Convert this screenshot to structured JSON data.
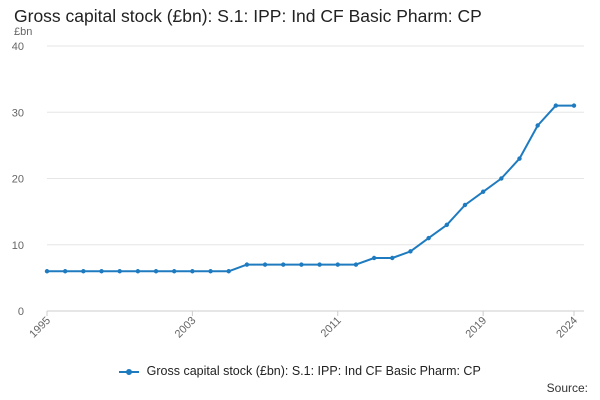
{
  "title": "Gross capital stock (£bn): S.1: IPP: Ind CF Basic Pharm: CP",
  "source_label": "Source:",
  "colors": {
    "series": "#1f7bbf",
    "grid": "#e6e6e6",
    "axis_text": "#666666"
  },
  "chart_data": {
    "type": "line",
    "title": "Gross capital stock (£bn): S.1: IPP: Ind CF Basic Pharm: CP",
    "ylabel": "£bn",
    "xlabel": "",
    "ylim": [
      0,
      40
    ],
    "yticks": [
      0,
      10,
      20,
      30,
      40
    ],
    "xlim": [
      1995,
      2024
    ],
    "xticks": [
      1995,
      2003,
      2011,
      2019,
      2024
    ],
    "grid": true,
    "legend_position": "bottom",
    "series": [
      {
        "name": "Gross capital stock (£bn): S.1: IPP: Ind CF Basic Pharm: CP",
        "x": [
          1995,
          1996,
          1997,
          1998,
          1999,
          2000,
          2001,
          2002,
          2003,
          2004,
          2005,
          2006,
          2007,
          2008,
          2009,
          2010,
          2011,
          2012,
          2013,
          2014,
          2015,
          2016,
          2017,
          2018,
          2019,
          2020,
          2021,
          2022,
          2023,
          2024
        ],
        "values": [
          6,
          6,
          6,
          6,
          6,
          6,
          6,
          6,
          6,
          6,
          6,
          7,
          7,
          7,
          7,
          7,
          7,
          7,
          8,
          8,
          9,
          11,
          13,
          16,
          18,
          20,
          23,
          28,
          31,
          31
        ]
      }
    ]
  }
}
